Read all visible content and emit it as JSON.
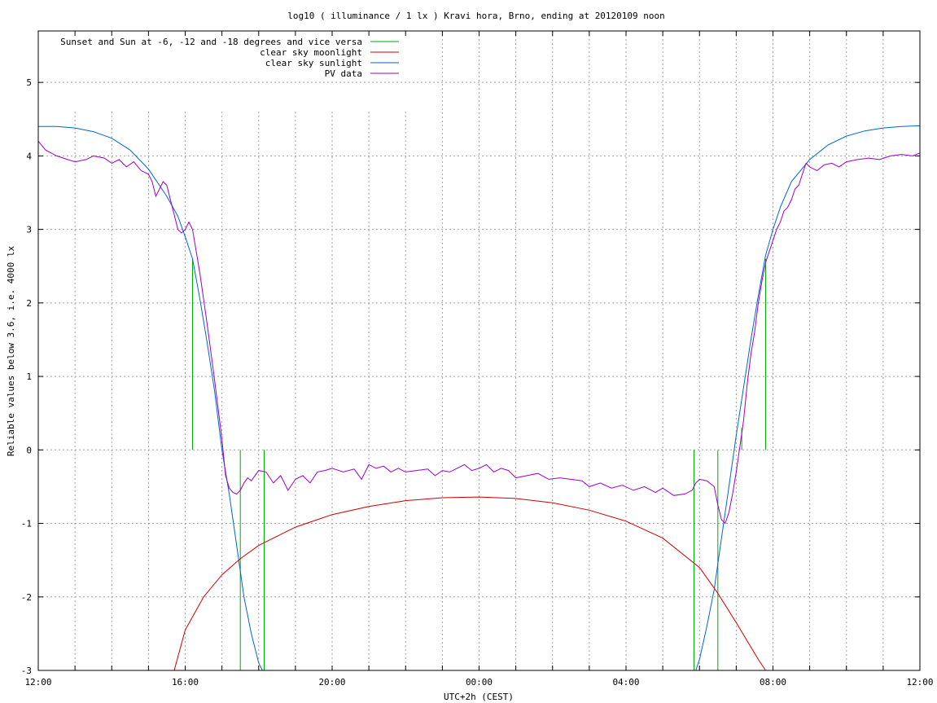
{
  "chart_data": {
    "type": "line",
    "title": "log10 ( illuminance / 1 lx ) Kravi hora, Brno, ending at 20120109 noon",
    "xlabel": "UTC+2h (CEST)",
    "ylabel": "Reliable values below 3.6, i.e. 4000 lx",
    "xlim": [
      0,
      24
    ],
    "ylim": [
      -3,
      5.7
    ],
    "yticks": [
      -3,
      -2,
      -1,
      0,
      1,
      2,
      3,
      4,
      5
    ],
    "ytick_labels": [
      "-3",
      "-2",
      "-1",
      "0",
      "1",
      "2",
      "3",
      "4",
      "5"
    ],
    "xticks": [
      0,
      4,
      8,
      12,
      16,
      20,
      24
    ],
    "xtick_labels": [
      "12:00",
      "16:00",
      "20:00",
      "00:00",
      "04:00",
      "08:00",
      "12:00"
    ],
    "grid": true,
    "legend_position": "top-left",
    "series": [
      {
        "name": "Sunset and Sun at -6, -12 and -18 degrees and vice versa",
        "color": "#00aa00",
        "kind": "vertical-markers",
        "markers": [
          {
            "x": 4.2,
            "y0": 0,
            "y1": 2.6
          },
          {
            "x": 4.85,
            "y0": 0,
            "y1": 0
          },
          {
            "x": 5.5,
            "y0": -3,
            "y1": 0
          },
          {
            "x": 6.15,
            "y0": -3,
            "y1": 0
          },
          {
            "x": 17.85,
            "y0": -3,
            "y1": 0
          },
          {
            "x": 18.5,
            "y0": -3,
            "y1": 0
          },
          {
            "x": 19.15,
            "y0": 0,
            "y1": 0.3
          },
          {
            "x": 19.8,
            "y0": 0,
            "y1": 2.6
          }
        ]
      },
      {
        "name": "clear sky moonlight",
        "color": "#cc0000",
        "x": [
          3.7,
          4.0,
          4.5,
          5.0,
          5.5,
          6.0,
          7.0,
          8.0,
          9.0,
          10.0,
          11.0,
          12.0,
          13.0,
          14.0,
          15.0,
          16.0,
          17.0,
          18.0,
          18.5,
          19.0,
          19.3,
          19.6,
          19.8
        ],
        "y": [
          -3.0,
          -2.45,
          -2.0,
          -1.7,
          -1.48,
          -1.3,
          -1.05,
          -0.88,
          -0.77,
          -0.69,
          -0.65,
          -0.64,
          -0.66,
          -0.72,
          -0.82,
          -0.97,
          -1.2,
          -1.6,
          -1.95,
          -2.35,
          -2.6,
          -2.85,
          -3.0
        ]
      },
      {
        "name": "clear sky sunlight",
        "color": "#0066cc",
        "x": [
          0.0,
          0.5,
          1.0,
          1.5,
          2.0,
          2.5,
          3.0,
          3.5,
          3.8,
          4.0,
          4.2,
          4.4,
          4.6,
          4.8,
          5.0,
          5.2,
          5.4,
          5.6,
          5.8,
          6.0,
          6.1,
          17.9,
          18.0,
          18.2,
          18.4,
          18.6,
          18.8,
          19.0,
          19.2,
          19.4,
          19.6,
          19.8,
          20.0,
          20.2,
          20.5,
          21.0,
          21.5,
          22.0,
          22.5,
          23.0,
          23.5,
          24.0
        ],
        "y": [
          4.4,
          4.4,
          4.38,
          4.33,
          4.24,
          4.08,
          3.82,
          3.45,
          3.18,
          2.9,
          2.6,
          2.05,
          1.45,
          0.8,
          0.0,
          -0.6,
          -1.3,
          -2.0,
          -2.5,
          -2.9,
          -3.0,
          -3.0,
          -2.85,
          -2.4,
          -1.9,
          -1.2,
          -0.5,
          0.2,
          0.85,
          1.5,
          2.1,
          2.65,
          3.0,
          3.3,
          3.65,
          3.95,
          4.15,
          4.27,
          4.34,
          4.38,
          4.4,
          4.41
        ]
      },
      {
        "name": "PV data",
        "color": "#9900cc",
        "x": [
          0.0,
          0.2,
          0.5,
          0.8,
          1.0,
          1.3,
          1.5,
          1.8,
          2.0,
          2.2,
          2.4,
          2.6,
          2.8,
          3.0,
          3.1,
          3.2,
          3.3,
          3.4,
          3.5,
          3.6,
          3.7,
          3.8,
          3.9,
          4.0,
          4.1,
          4.2,
          4.4,
          4.6,
          4.8,
          5.0,
          5.1,
          5.2,
          5.3,
          5.4,
          5.5,
          5.6,
          5.7,
          5.8,
          5.9,
          6.0,
          6.2,
          6.4,
          6.6,
          6.8,
          7.0,
          7.2,
          7.4,
          7.6,
          7.8,
          8.0,
          8.3,
          8.6,
          8.8,
          9.0,
          9.2,
          9.4,
          9.6,
          9.8,
          10.0,
          10.3,
          10.6,
          10.8,
          11.0,
          11.2,
          11.4,
          11.6,
          11.8,
          12.0,
          12.2,
          12.4,
          12.6,
          12.8,
          13.0,
          13.3,
          13.6,
          13.9,
          14.2,
          14.5,
          14.8,
          15.0,
          15.3,
          15.6,
          15.9,
          16.2,
          16.5,
          16.8,
          17.0,
          17.3,
          17.6,
          17.8,
          17.9,
          18.0,
          18.2,
          18.4,
          18.5,
          18.6,
          18.7,
          18.8,
          18.9,
          19.0,
          19.1,
          19.2,
          19.3,
          19.4,
          19.5,
          19.6,
          19.7,
          19.8,
          19.9,
          20.0,
          20.1,
          20.2,
          20.3,
          20.4,
          20.5,
          20.6,
          20.7,
          20.8,
          20.9,
          21.0,
          21.2,
          21.4,
          21.6,
          21.8,
          22.0,
          22.3,
          22.6,
          22.9,
          23.2,
          23.5,
          23.8,
          24.0
        ],
        "y": [
          4.2,
          4.08,
          4.0,
          3.95,
          3.92,
          3.95,
          4.0,
          3.97,
          3.9,
          3.95,
          3.85,
          3.92,
          3.8,
          3.75,
          3.65,
          3.45,
          3.55,
          3.65,
          3.6,
          3.4,
          3.2,
          3.0,
          2.95,
          3.0,
          3.1,
          3.0,
          2.4,
          1.7,
          0.95,
          0.15,
          -0.35,
          -0.52,
          -0.58,
          -0.6,
          -0.55,
          -0.45,
          -0.38,
          -0.42,
          -0.35,
          -0.28,
          -0.3,
          -0.45,
          -0.35,
          -0.55,
          -0.4,
          -0.35,
          -0.45,
          -0.3,
          -0.28,
          -0.25,
          -0.3,
          -0.26,
          -0.4,
          -0.2,
          -0.25,
          -0.22,
          -0.3,
          -0.25,
          -0.3,
          -0.28,
          -0.26,
          -0.35,
          -0.28,
          -0.3,
          -0.25,
          -0.2,
          -0.28,
          -0.25,
          -0.2,
          -0.3,
          -0.25,
          -0.28,
          -0.38,
          -0.35,
          -0.32,
          -0.4,
          -0.38,
          -0.4,
          -0.42,
          -0.5,
          -0.45,
          -0.52,
          -0.48,
          -0.55,
          -0.5,
          -0.58,
          -0.52,
          -0.62,
          -0.6,
          -0.55,
          -0.45,
          -0.4,
          -0.42,
          -0.5,
          -0.75,
          -0.95,
          -1.0,
          -0.85,
          -0.6,
          -0.3,
          0.05,
          0.4,
          0.9,
          1.3,
          1.6,
          2.0,
          2.3,
          2.55,
          2.7,
          2.85,
          3.0,
          3.1,
          3.25,
          3.3,
          3.4,
          3.55,
          3.6,
          3.75,
          3.9,
          3.85,
          3.8,
          3.88,
          3.9,
          3.85,
          3.92,
          3.95,
          3.97,
          3.95,
          4.0,
          4.02,
          4.0,
          4.04
        ]
      }
    ]
  }
}
